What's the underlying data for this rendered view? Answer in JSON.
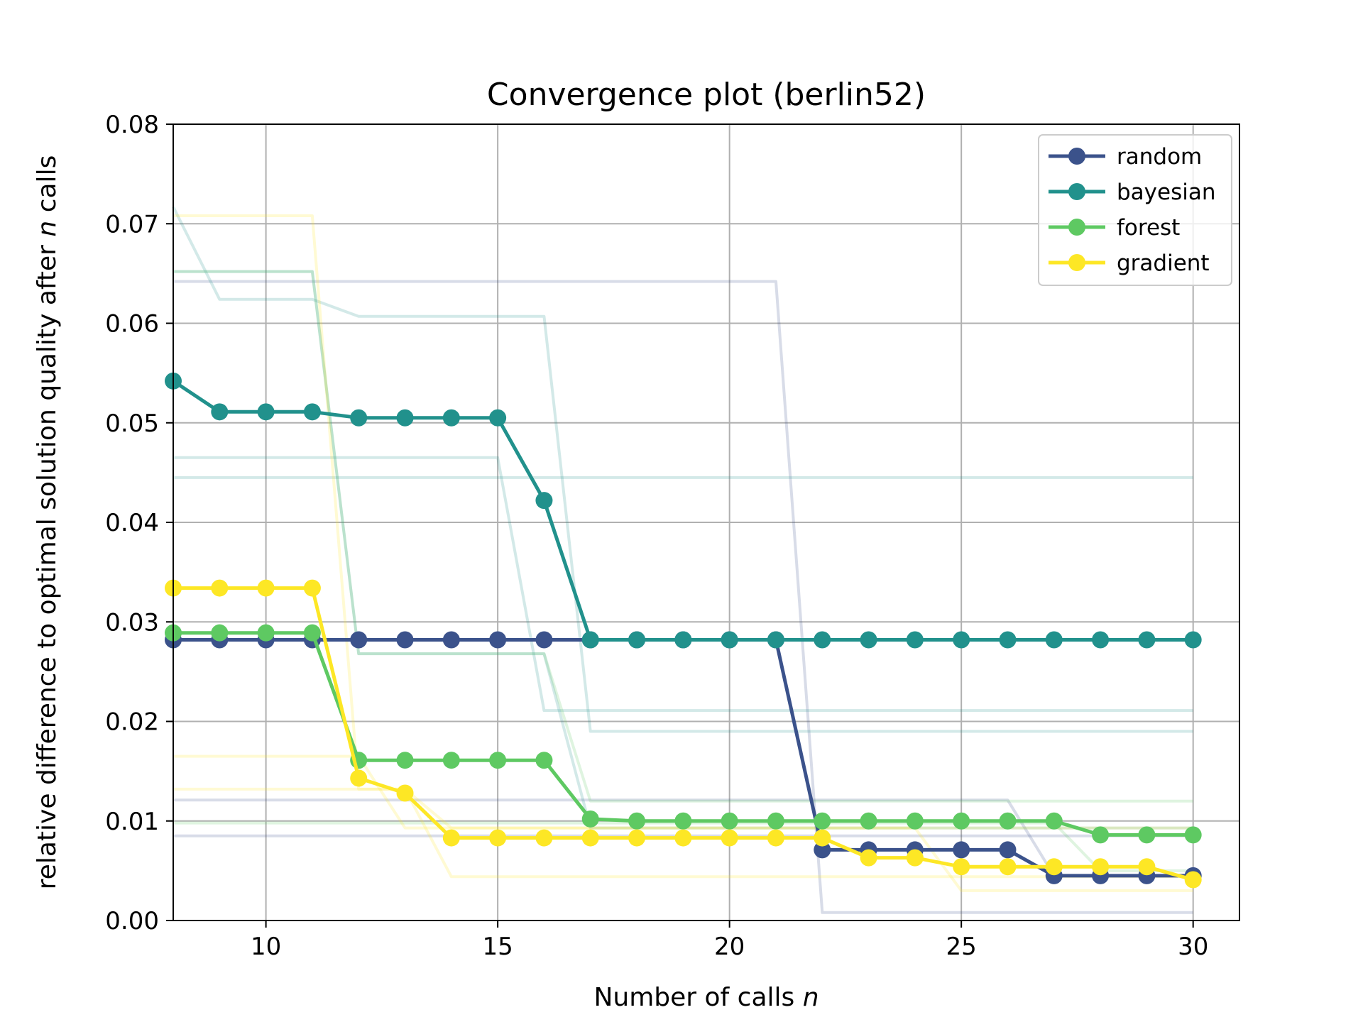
{
  "chart_data": {
    "type": "line",
    "title": "Convergence plot (berlin52)",
    "xlabel_main": "Number of calls ",
    "xlabel_italic": "n",
    "ylabel_main": "relative difference to optimal solution quality after ",
    "ylabel_italic": "n",
    "ylabel_tail": " calls",
    "xlim": [
      8,
      31
    ],
    "ylim": [
      0,
      0.08
    ],
    "xticks": [
      10,
      15,
      20,
      25,
      30
    ],
    "yticks": [
      0.0,
      0.01,
      0.02,
      0.03,
      0.04,
      0.05,
      0.06,
      0.07,
      0.08
    ],
    "ytick_labels": [
      "0.00",
      "0.01",
      "0.02",
      "0.03",
      "0.04",
      "0.05",
      "0.06",
      "0.07",
      "0.08"
    ],
    "grid": true,
    "legend_position": "top-right",
    "x": [
      8,
      9,
      10,
      11,
      12,
      13,
      14,
      15,
      16,
      17,
      18,
      19,
      20,
      21,
      22,
      23,
      24,
      25,
      26,
      27,
      28,
      29,
      30
    ],
    "series": [
      {
        "name": "random",
        "color": "#3b528b",
        "values": [
          0.0282,
          0.0282,
          0.0282,
          0.0282,
          0.0282,
          0.0282,
          0.0282,
          0.0282,
          0.0282,
          0.0282,
          0.0282,
          0.0282,
          0.0282,
          0.0282,
          0.0071,
          0.0071,
          0.0071,
          0.0071,
          0.0071,
          0.0045,
          0.0045,
          0.0045,
          0.0045
        ],
        "runs": [
          [
            0.0642,
            0.0642,
            0.0642,
            0.0642,
            0.0642,
            0.0642,
            0.0642,
            0.0642,
            0.0642,
            0.0642,
            0.0642,
            0.0642,
            0.0642,
            0.0642,
            0.0008,
            0.0008,
            0.0008,
            0.0008,
            0.0008,
            0.0008,
            0.0008,
            0.0008,
            0.0008
          ],
          [
            0.0121,
            0.0121,
            0.0121,
            0.0121,
            0.0121,
            0.0121,
            0.0121,
            0.0121,
            0.0121,
            0.0121,
            0.0121,
            0.0121,
            0.0121,
            0.0121,
            0.0121,
            0.0121,
            0.0121,
            0.0121,
            0.0121,
            0.0045,
            0.0045,
            0.0045,
            0.0045
          ],
          [
            0.0085,
            0.0085,
            0.0085,
            0.0085,
            0.0085,
            0.0085,
            0.0085,
            0.0085,
            0.0085,
            0.0085,
            0.0085,
            0.0085,
            0.0085,
            0.0085,
            0.0085,
            0.0085,
            0.0085,
            0.0085,
            0.0085,
            0.0085,
            0.0085,
            0.0085,
            0.0085
          ]
        ]
      },
      {
        "name": "bayesian",
        "color": "#21918c",
        "values": [
          0.0542,
          0.0511,
          0.0511,
          0.0511,
          0.0505,
          0.0505,
          0.0505,
          0.0505,
          0.0422,
          0.0282,
          0.0282,
          0.0282,
          0.0282,
          0.0282,
          0.0282,
          0.0282,
          0.0282,
          0.0282,
          0.0282,
          0.0282,
          0.0282,
          0.0282,
          0.0282
        ],
        "runs": [
          [
            0.0717,
            0.0624,
            0.0624,
            0.0624,
            0.0607,
            0.0607,
            0.0607,
            0.0607,
            0.0607,
            0.019,
            0.019,
            0.019,
            0.019,
            0.019,
            0.019,
            0.019,
            0.019,
            0.019,
            0.019,
            0.019,
            0.019,
            0.019,
            0.019
          ],
          [
            0.0652,
            0.0652,
            0.0652,
            0.0652,
            0.0268,
            0.0268,
            0.0268,
            0.0268,
            0.0268,
            0.0093,
            0.0093,
            0.0093,
            0.0093,
            0.0093,
            0.0093,
            0.0093,
            0.0093,
            0.0093,
            0.0093,
            0.0093,
            0.0093,
            0.0093,
            0.0093
          ],
          [
            0.0465,
            0.0465,
            0.0465,
            0.0465,
            0.0465,
            0.0465,
            0.0465,
            0.0465,
            0.0211,
            0.0211,
            0.0211,
            0.0211,
            0.0211,
            0.0211,
            0.0211,
            0.0211,
            0.0211,
            0.0211,
            0.0211,
            0.0211,
            0.0211,
            0.0211,
            0.0211
          ],
          [
            0.0445,
            0.0445,
            0.0445,
            0.0445,
            0.0445,
            0.0445,
            0.0445,
            0.0445,
            0.0445,
            0.0445,
            0.0445,
            0.0445,
            0.0445,
            0.0445,
            0.0445,
            0.0445,
            0.0445,
            0.0445,
            0.0445,
            0.0445,
            0.0445,
            0.0445,
            0.0445
          ]
        ]
      },
      {
        "name": "forest",
        "color": "#5ec962",
        "values": [
          0.0289,
          0.0289,
          0.0289,
          0.0289,
          0.0161,
          0.0161,
          0.0161,
          0.0161,
          0.0161,
          0.0102,
          0.01,
          0.01,
          0.01,
          0.01,
          0.01,
          0.01,
          0.01,
          0.01,
          0.01,
          0.01,
          0.0086,
          0.0086,
          0.0086
        ],
        "runs": [
          [
            0.0652,
            0.0652,
            0.0652,
            0.0652,
            0.0268,
            0.0268,
            0.0268,
            0.0268,
            0.0268,
            0.012,
            0.012,
            0.012,
            0.012,
            0.012,
            0.012,
            0.012,
            0.012,
            0.012,
            0.012,
            0.012,
            0.012,
            0.012,
            0.012
          ],
          [
            0.0098,
            0.0098,
            0.0098,
            0.0098,
            0.0098,
            0.0098,
            0.0098,
            0.0098,
            0.0098,
            0.0098,
            0.0098,
            0.0098,
            0.0098,
            0.0098,
            0.0098,
            0.0098,
            0.0098,
            0.0098,
            0.0098,
            0.0098,
            0.005,
            0.005,
            0.005
          ]
        ]
      },
      {
        "name": "gradient",
        "color": "#fde725",
        "values": [
          0.0334,
          0.0334,
          0.0334,
          0.0334,
          0.0143,
          0.0128,
          0.0083,
          0.0083,
          0.0083,
          0.0083,
          0.0083,
          0.0083,
          0.0083,
          0.0083,
          0.0083,
          0.0063,
          0.0063,
          0.0054,
          0.0054,
          0.0054,
          0.0054,
          0.0054,
          0.0041
        ],
        "runs": [
          [
            0.0708,
            0.0708,
            0.0708,
            0.0708,
            0.0132,
            0.0132,
            0.0044,
            0.0044,
            0.0044,
            0.0044,
            0.0044,
            0.0044,
            0.0044,
            0.0044,
            0.0044,
            0.0044,
            0.0044,
            0.0044,
            0.0044,
            0.0044,
            0.0044,
            0.0044,
            0.0044
          ],
          [
            0.0165,
            0.0165,
            0.0165,
            0.0165,
            0.0165,
            0.0093,
            0.0093,
            0.0093,
            0.0093,
            0.0093,
            0.0093,
            0.0093,
            0.0093,
            0.0093,
            0.0093,
            0.0093,
            0.0093,
            0.0093,
            0.0093,
            0.0093,
            0.0093,
            0.0093,
            0.0093
          ],
          [
            0.0132,
            0.0132,
            0.0132,
            0.0132,
            0.0132,
            0.0132,
            0.0093,
            0.0093,
            0.0093,
            0.0093,
            0.0093,
            0.0093,
            0.0093,
            0.0093,
            0.0093,
            0.0093,
            0.0093,
            0.003,
            0.003,
            0.003,
            0.003,
            0.003,
            0.003
          ]
        ]
      }
    ]
  }
}
